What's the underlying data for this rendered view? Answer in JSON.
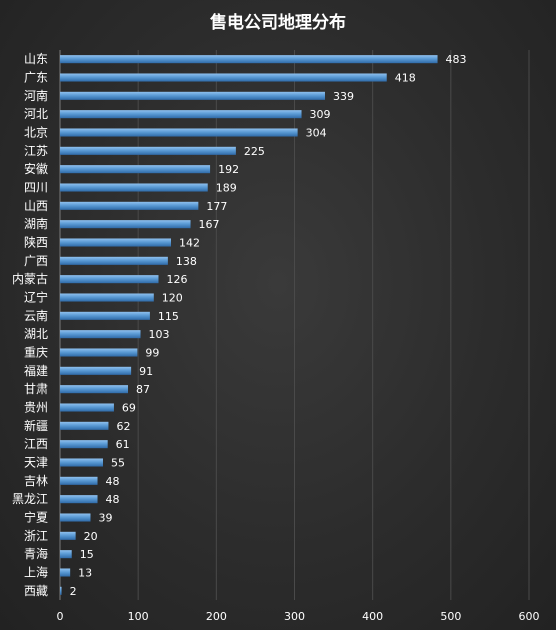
{
  "chart_data": {
    "type": "bar",
    "orientation": "horizontal",
    "title": "售电公司地理分布",
    "categories": [
      "山东",
      "广东",
      "河南",
      "河北",
      "北京",
      "江苏",
      "安徽",
      "四川",
      "山西",
      "湖南",
      "陕西",
      "广西",
      "内蒙古",
      "辽宁",
      "云南",
      "湖北",
      "重庆",
      "福建",
      "甘肃",
      "贵州",
      "新疆",
      "江西",
      "天津",
      "吉林",
      "黑龙江",
      "宁夏",
      "浙江",
      "青海",
      "上海",
      "西藏"
    ],
    "values": [
      483,
      418,
      339,
      309,
      304,
      225,
      192,
      189,
      177,
      167,
      142,
      138,
      126,
      120,
      115,
      103,
      99,
      91,
      87,
      69,
      62,
      61,
      55,
      48,
      48,
      39,
      20,
      15,
      13,
      2
    ],
    "xlim": [
      0,
      600
    ],
    "xticks": [
      0,
      100,
      200,
      300,
      400,
      500,
      600
    ],
    "grid": true,
    "legend": "none",
    "colors": {
      "bar": "#5b9bd5",
      "bar_highlight": "#8fc0ee",
      "bar_shadow": "#2f6aa8"
    }
  }
}
